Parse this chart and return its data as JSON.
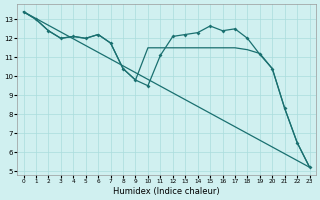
{
  "xlabel": "Humidex (Indice chaleur)",
  "xlim": [
    -0.5,
    23.5
  ],
  "ylim": [
    4.8,
    13.8
  ],
  "yticks": [
    5,
    6,
    7,
    8,
    9,
    10,
    11,
    12,
    13
  ],
  "xticks": [
    0,
    1,
    2,
    3,
    4,
    5,
    6,
    7,
    8,
    9,
    10,
    11,
    12,
    13,
    14,
    15,
    16,
    17,
    18,
    19,
    20,
    21,
    22,
    23
  ],
  "bg_color": "#d0f0f0",
  "grid_color": "#aadddd",
  "line_color": "#1a7070",
  "lw": 0.9,
  "marker_size": 2.0,
  "line1_x": [
    0,
    1,
    2,
    3,
    4,
    5,
    6,
    7,
    8,
    9,
    10,
    11,
    12,
    13,
    14,
    15,
    16,
    17,
    18,
    19,
    20,
    21,
    22,
    23
  ],
  "line1_y": [
    13.4,
    13.0,
    12.4,
    12.0,
    12.1,
    12.0,
    12.2,
    11.75,
    10.4,
    9.8,
    9.5,
    11.1,
    12.1,
    12.2,
    12.3,
    12.65,
    12.4,
    12.5,
    12.0,
    11.15,
    10.4,
    8.3,
    6.5,
    5.2
  ],
  "line2_x": [
    0,
    23
  ],
  "line2_y": [
    13.4,
    5.2
  ],
  "line3_x": [
    0,
    1,
    2,
    3,
    4,
    5,
    6,
    7,
    8,
    9,
    10,
    11,
    12,
    13,
    14,
    15,
    16,
    17,
    18,
    19,
    20,
    21,
    22,
    23
  ],
  "line3_y": [
    13.4,
    13.0,
    12.4,
    12.0,
    12.1,
    12.0,
    12.2,
    11.75,
    10.4,
    9.8,
    11.5,
    11.5,
    11.5,
    11.5,
    11.5,
    11.5,
    11.5,
    11.5,
    11.4,
    11.2,
    10.4,
    8.3,
    6.5,
    5.2
  ]
}
